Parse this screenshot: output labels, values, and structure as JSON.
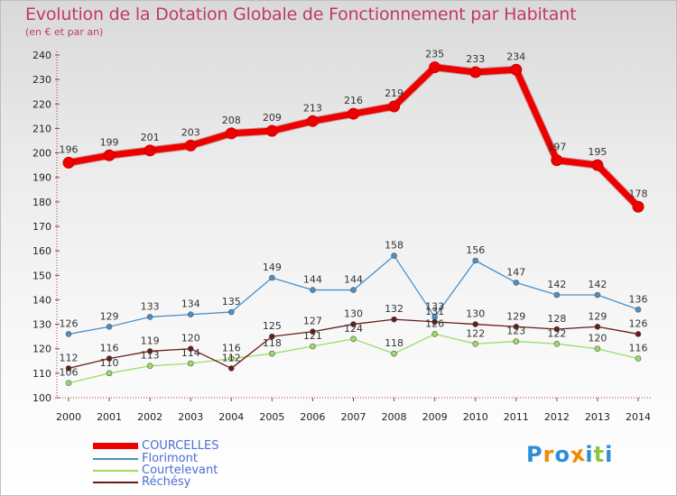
{
  "chart_data": {
    "type": "line",
    "title": "Evolution de la Dotation Globale de Fonctionnement par Habitant",
    "subtitle": "(en € et par an)",
    "x": [
      "2000",
      "2001",
      "2002",
      "2003",
      "2004",
      "2005",
      "2006",
      "2007",
      "2008",
      "2009",
      "2010",
      "2011",
      "2012",
      "2013",
      "2014"
    ],
    "yticks": [
      "100",
      "110",
      "120",
      "130",
      "140",
      "150",
      "160",
      "170",
      "180",
      "190",
      "200",
      "210",
      "220",
      "230",
      "240"
    ],
    "ylim": [
      100,
      240
    ],
    "grid": false,
    "legend_position": "bottom-left",
    "series": [
      {
        "name": "COURCELLES",
        "color": "#ee0000",
        "values": [
          196,
          199,
          201,
          203,
          208,
          209,
          213,
          216,
          219,
          235,
          233,
          234,
          197,
          195,
          178
        ]
      },
      {
        "name": "Florimont",
        "color": "#4a90c8",
        "values": [
          126,
          129,
          133,
          134,
          135,
          149,
          144,
          144,
          158,
          133,
          156,
          147,
          142,
          142,
          136
        ]
      },
      {
        "name": "Courtelevant",
        "color": "#99dd66",
        "values": [
          106,
          110,
          113,
          114,
          116,
          118,
          121,
          124,
          118,
          126,
          122,
          123,
          122,
          120,
          116
        ]
      },
      {
        "name": "Réchésy",
        "color": "#6b1a1a",
        "values": [
          112,
          116,
          119,
          120,
          112,
          125,
          127,
          130,
          132,
          131,
          130,
          129,
          128,
          129,
          126
        ]
      }
    ]
  },
  "logo": {
    "text": "Proxiti",
    "letters": [
      "P",
      "r",
      "o",
      "x",
      "i",
      "t",
      "i"
    ],
    "colors": [
      "#2a8fd8",
      "#f08a00",
      "#2a8fd8",
      "#f08a00",
      "#2a8fd8",
      "#8cc63e",
      "#2a8fd8"
    ]
  }
}
